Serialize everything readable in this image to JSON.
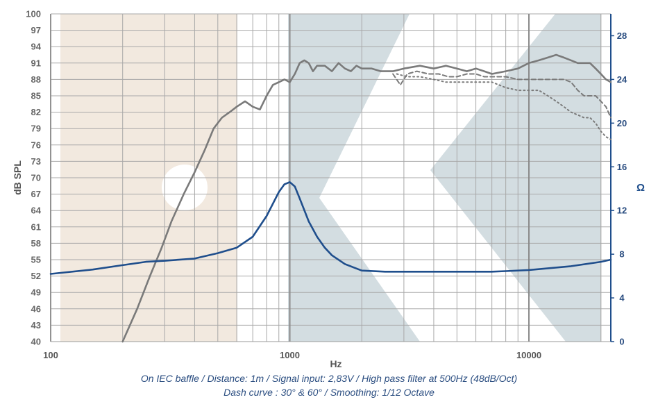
{
  "chart_data": {
    "type": "line",
    "x_scale": "log",
    "xlim": [
      100,
      22000
    ],
    "ylim": [
      40,
      100
    ],
    "y2lim": [
      0,
      30
    ],
    "grid": true,
    "xlabel": "Hz",
    "ylabel": "dB SPL",
    "y2label": "Ω",
    "x_ticks": [
      100,
      1000,
      10000
    ],
    "x_tick_labels": [
      "100",
      "1000",
      "10000"
    ],
    "y_ticks": [
      40,
      43,
      46,
      49,
      52,
      55,
      58,
      61,
      64,
      67,
      70,
      73,
      76,
      79,
      82,
      85,
      88,
      91,
      94,
      97,
      100
    ],
    "y2_ticks": [
      0,
      4,
      8,
      12,
      16,
      20,
      24,
      28
    ],
    "colors": {
      "spl": "#7a7a7a",
      "impedance": "#1f4e8c",
      "grid": "#a8a8a8",
      "axis_right": "#1f4e8c"
    },
    "series": [
      {
        "axis": "left",
        "style": "solid",
        "color": "#7a7a7a",
        "points": [
          [
            200,
            40
          ],
          [
            230,
            46
          ],
          [
            260,
            52
          ],
          [
            290,
            57
          ],
          [
            320,
            62
          ],
          [
            360,
            67
          ],
          [
            400,
            71
          ],
          [
            440,
            75
          ],
          [
            480,
            79
          ],
          [
            520,
            81
          ],
          [
            560,
            82
          ],
          [
            600,
            83
          ],
          [
            650,
            84
          ],
          [
            700,
            83
          ],
          [
            750,
            82.5
          ],
          [
            800,
            85
          ],
          [
            850,
            87
          ],
          [
            900,
            87.5
          ],
          [
            950,
            88
          ],
          [
            1000,
            87.5
          ],
          [
            1050,
            89
          ],
          [
            1100,
            91
          ],
          [
            1150,
            91.5
          ],
          [
            1200,
            91
          ],
          [
            1250,
            89.5
          ],
          [
            1300,
            90.5
          ],
          [
            1400,
            90.5
          ],
          [
            1500,
            89.5
          ],
          [
            1600,
            91
          ],
          [
            1700,
            90
          ],
          [
            1800,
            89.5
          ],
          [
            1900,
            90.5
          ],
          [
            2000,
            90
          ],
          [
            2200,
            90
          ],
          [
            2400,
            89.5
          ],
          [
            2700,
            89.5
          ],
          [
            3000,
            90
          ],
          [
            3500,
            90.5
          ],
          [
            4000,
            90
          ],
          [
            4500,
            90.5
          ],
          [
            5000,
            90
          ],
          [
            5500,
            89.5
          ],
          [
            6000,
            90
          ],
          [
            6500,
            89.5
          ],
          [
            7000,
            89
          ],
          [
            8000,
            89.5
          ],
          [
            9000,
            90
          ],
          [
            10000,
            91
          ],
          [
            11000,
            91.5
          ],
          [
            12000,
            92
          ],
          [
            13000,
            92.5
          ],
          [
            14000,
            92
          ],
          [
            15000,
            91.5
          ],
          [
            16000,
            91
          ],
          [
            17000,
            91
          ],
          [
            18000,
            91
          ],
          [
            19000,
            90
          ],
          [
            20000,
            89
          ],
          [
            21000,
            88
          ],
          [
            22000,
            87.5
          ]
        ]
      },
      {
        "axis": "left",
        "style": "dashed",
        "color": "#7a7a7a",
        "points": [
          [
            2700,
            89
          ],
          [
            2900,
            87
          ],
          [
            3100,
            89
          ],
          [
            3400,
            89.5
          ],
          [
            3800,
            89
          ],
          [
            4200,
            89
          ],
          [
            4600,
            88.5
          ],
          [
            5000,
            88.5
          ],
          [
            5500,
            89
          ],
          [
            6000,
            89
          ],
          [
            6500,
            88.5
          ],
          [
            7000,
            88.5
          ],
          [
            8000,
            88.5
          ],
          [
            9000,
            88
          ],
          [
            10000,
            88
          ],
          [
            11000,
            88
          ],
          [
            12000,
            88
          ],
          [
            13000,
            88
          ],
          [
            14000,
            88
          ],
          [
            15000,
            87.5
          ],
          [
            16000,
            86
          ],
          [
            17000,
            85
          ],
          [
            18000,
            85
          ],
          [
            19000,
            85
          ],
          [
            20000,
            84
          ],
          [
            21000,
            83
          ],
          [
            22000,
            81
          ]
        ]
      },
      {
        "axis": "left",
        "style": "dotted",
        "color": "#7a7a7a",
        "points": [
          [
            2800,
            89
          ],
          [
            3100,
            88.5
          ],
          [
            3500,
            88.5
          ],
          [
            4000,
            88
          ],
          [
            4500,
            87.5
          ],
          [
            5000,
            87.5
          ],
          [
            6000,
            87.5
          ],
          [
            7000,
            87.5
          ],
          [
            8000,
            86.5
          ],
          [
            9000,
            86
          ],
          [
            10000,
            86
          ],
          [
            11000,
            86
          ],
          [
            12000,
            85
          ],
          [
            13000,
            84
          ],
          [
            14000,
            83
          ],
          [
            15000,
            82
          ],
          [
            16000,
            81.5
          ],
          [
            17000,
            81
          ],
          [
            18000,
            81
          ],
          [
            19000,
            80
          ],
          [
            20000,
            78.5
          ],
          [
            21000,
            77.5
          ],
          [
            22000,
            77
          ]
        ]
      },
      {
        "axis": "right",
        "style": "solid",
        "color": "#1f4e8c",
        "points": [
          [
            100,
            6.2
          ],
          [
            150,
            6.6
          ],
          [
            200,
            7.0
          ],
          [
            250,
            7.3
          ],
          [
            300,
            7.4
          ],
          [
            400,
            7.6
          ],
          [
            500,
            8.1
          ],
          [
            600,
            8.6
          ],
          [
            700,
            9.6
          ],
          [
            800,
            11.5
          ],
          [
            900,
            13.7
          ],
          [
            950,
            14.4
          ],
          [
            1000,
            14.6
          ],
          [
            1050,
            14.2
          ],
          [
            1100,
            13.1
          ],
          [
            1200,
            11.0
          ],
          [
            1300,
            9.6
          ],
          [
            1400,
            8.6
          ],
          [
            1500,
            7.9
          ],
          [
            1700,
            7.1
          ],
          [
            2000,
            6.5
          ],
          [
            2500,
            6.4
          ],
          [
            3000,
            6.4
          ],
          [
            5000,
            6.4
          ],
          [
            7000,
            6.4
          ],
          [
            8000,
            6.45
          ],
          [
            10000,
            6.55
          ],
          [
            15000,
            6.9
          ],
          [
            20000,
            7.3
          ],
          [
            22000,
            7.5
          ]
        ]
      }
    ]
  },
  "caption": {
    "line1": "On IEC baffle / Distance: 1m / Signal input: 2,83V / High pass filter at 500Hz (48dB/Oct)",
    "line2": "Dash curve : 30° & 60° / Smoothing: 1/12 Octave"
  }
}
